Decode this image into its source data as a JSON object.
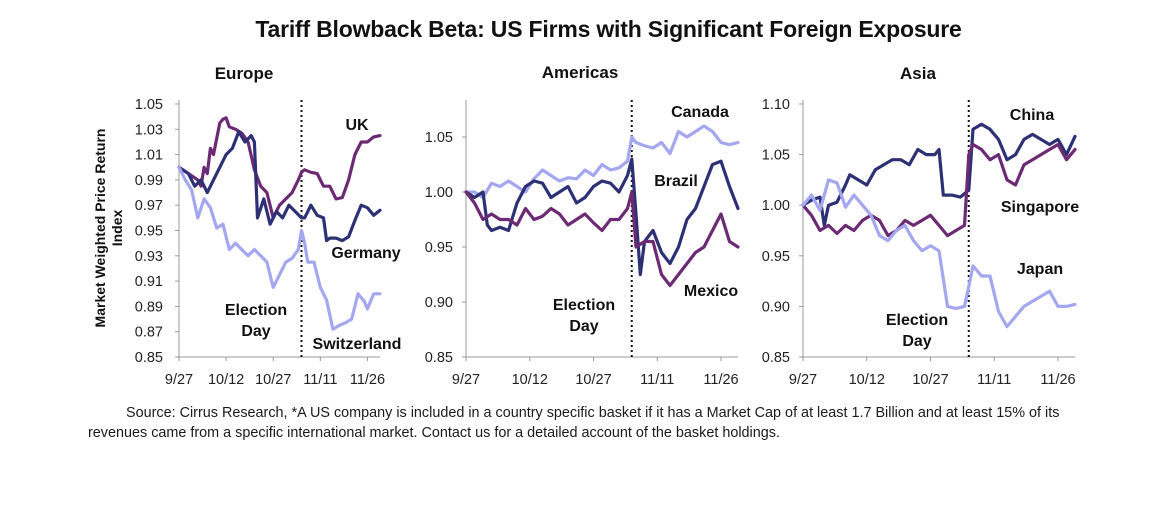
{
  "title": "Tariff Blowback Beta: US Firms with Significant Foreign Exposure",
  "source": "Source: Cirrus Research, *A US company is included in a country specific basket if it has a Market Cap of at least 1.7 Billion and at least 15% of its revenues came from a specific international market. Contact us for a detailed account of the basket holdings.",
  "colors": {
    "dark": "#2e3075",
    "purple": "#6b2a73",
    "light": "#a4a7f0"
  },
  "chart_data": [
    {
      "type": "line",
      "title": "Europe",
      "ylabel": "Market Weighted Price Return Index",
      "ylim": [
        0.85,
        1.05
      ],
      "yticks": [
        "0.85",
        "0.87",
        "0.89",
        "0.91",
        "0.93",
        "0.95",
        "0.97",
        "0.99",
        "1.01",
        "1.03",
        "1.05"
      ],
      "xticks": [
        "9/27",
        "10/12",
        "10/27",
        "11/11",
        "11/26"
      ],
      "x_start": "9/27",
      "x_end": "11/30",
      "annotation": {
        "text": [
          "Election",
          "Day"
        ],
        "x": "11/5"
      },
      "series": [
        {
          "name": "UK",
          "color": "purple",
          "x": [
            "9/27",
            "9/30",
            "10/3",
            "10/4",
            "10/5",
            "10/6",
            "10/7",
            "10/8",
            "10/10",
            "10/11",
            "10/12",
            "10/13",
            "10/15",
            "10/17",
            "10/19",
            "10/21",
            "10/23",
            "10/25",
            "10/27",
            "10/29",
            "10/31",
            "11/2",
            "11/4",
            "11/5",
            "11/6",
            "11/8",
            "11/10",
            "11/12",
            "11/14",
            "11/16",
            "11/18",
            "11/20",
            "11/22",
            "11/24",
            "11/26",
            "11/28",
            "11/30"
          ],
          "y": [
            1.0,
            0.995,
            0.99,
            0.985,
            1.0,
            0.995,
            1.015,
            1.01,
            1.035,
            1.038,
            1.039,
            1.032,
            1.03,
            1.027,
            1.02,
            0.998,
            0.985,
            0.98,
            0.96,
            0.97,
            0.975,
            0.98,
            0.99,
            0.996,
            0.998,
            0.996,
            0.995,
            0.985,
            0.985,
            0.975,
            0.976,
            0.99,
            1.01,
            1.02,
            1.02,
            1.024,
            1.025
          ]
        },
        {
          "name": "Germany",
          "color": "dark",
          "x": [
            "9/27",
            "9/30",
            "10/2",
            "10/4",
            "10/6",
            "10/8",
            "10/10",
            "10/12",
            "10/14",
            "10/16",
            "10/18",
            "10/20",
            "10/21",
            "10/22",
            "10/24",
            "10/26",
            "10/28",
            "10/30",
            "11/1",
            "11/3",
            "11/5",
            "11/6",
            "11/8",
            "11/10",
            "11/12",
            "11/13",
            "11/14",
            "11/16",
            "11/18",
            "11/20",
            "11/22",
            "11/24",
            "11/26",
            "11/28",
            "11/30"
          ],
          "y": [
            1.0,
            0.995,
            0.985,
            0.99,
            0.98,
            0.99,
            1.0,
            1.01,
            1.015,
            1.028,
            1.02,
            1.025,
            1.02,
            0.96,
            0.975,
            0.955,
            0.965,
            0.96,
            0.97,
            0.965,
            0.96,
            0.96,
            0.97,
            0.962,
            0.96,
            0.942,
            0.944,
            0.944,
            0.942,
            0.945,
            0.958,
            0.97,
            0.968,
            0.962,
            0.966
          ]
        },
        {
          "name": "Switzerland",
          "color": "light",
          "x": [
            "9/27",
            "9/29",
            "10/1",
            "10/3",
            "10/5",
            "10/7",
            "10/9",
            "10/11",
            "10/13",
            "10/15",
            "10/17",
            "10/19",
            "10/21",
            "10/23",
            "10/25",
            "10/27",
            "10/29",
            "10/31",
            "11/2",
            "11/4",
            "11/5",
            "11/6",
            "11/7",
            "11/9",
            "11/11",
            "11/13",
            "11/15",
            "11/17",
            "11/19",
            "11/21",
            "11/23",
            "11/25",
            "11/26",
            "11/28",
            "11/30"
          ],
          "y": [
            1.0,
            0.99,
            0.982,
            0.96,
            0.975,
            0.968,
            0.952,
            0.955,
            0.935,
            0.94,
            0.935,
            0.93,
            0.935,
            0.93,
            0.925,
            0.905,
            0.915,
            0.925,
            0.928,
            0.935,
            0.95,
            0.94,
            0.925,
            0.925,
            0.905,
            0.895,
            0.872,
            0.875,
            0.877,
            0.88,
            0.9,
            0.894,
            0.888,
            0.9,
            0.9
          ]
        }
      ],
      "labels": [
        "UK",
        "Germany",
        "Switzerland"
      ]
    },
    {
      "type": "line",
      "title": "Americas",
      "ylim": [
        0.85,
        1.08
      ],
      "yticks": [
        "0.85",
        "0.90",
        "0.95",
        "1.00",
        "1.05"
      ],
      "xticks": [
        "9/27",
        "10/12",
        "10/27",
        "11/11",
        "11/26"
      ],
      "x_start": "9/27",
      "x_end": "11/30",
      "annotation": {
        "text": [
          "Election",
          "Day"
        ],
        "x": "11/5"
      },
      "series": [
        {
          "name": "Canada",
          "color": "light",
          "x": [
            "9/27",
            "9/29",
            "10/1",
            "10/3",
            "10/5",
            "10/7",
            "10/9",
            "10/11",
            "10/13",
            "10/15",
            "10/17",
            "10/19",
            "10/21",
            "10/23",
            "10/25",
            "10/27",
            "10/29",
            "10/31",
            "11/2",
            "11/4",
            "11/5",
            "11/6",
            "11/8",
            "11/10",
            "11/12",
            "11/14",
            "11/16",
            "11/18",
            "11/20",
            "11/22",
            "11/24",
            "11/26",
            "11/28",
            "11/30"
          ],
          "y": [
            1.0,
            1.0,
            0.995,
            1.008,
            1.005,
            1.01,
            1.005,
            1.0,
            1.012,
            1.02,
            1.015,
            1.01,
            1.013,
            1.012,
            1.02,
            1.015,
            1.025,
            1.02,
            1.022,
            1.028,
            1.05,
            1.045,
            1.042,
            1.04,
            1.045,
            1.035,
            1.055,
            1.05,
            1.055,
            1.06,
            1.055,
            1.045,
            1.043,
            1.045
          ]
        },
        {
          "name": "Brazil",
          "color": "dark",
          "x": [
            "9/27",
            "9/29",
            "10/1",
            "10/2",
            "10/3",
            "10/5",
            "10/7",
            "10/9",
            "10/11",
            "10/13",
            "10/15",
            "10/17",
            "10/19",
            "10/21",
            "10/23",
            "10/25",
            "10/27",
            "10/29",
            "10/31",
            "11/2",
            "11/4",
            "11/5",
            "11/6",
            "11/7",
            "11/8",
            "11/10",
            "11/12",
            "11/14",
            "11/16",
            "11/18",
            "11/20",
            "11/22",
            "11/24",
            "11/26",
            "11/28",
            "11/30"
          ],
          "y": [
            1.0,
            0.995,
            1.0,
            0.97,
            0.965,
            0.968,
            0.965,
            0.99,
            1.005,
            1.01,
            1.008,
            0.995,
            1.0,
            1.005,
            0.99,
            0.995,
            1.005,
            1.01,
            1.008,
            1.0,
            1.015,
            1.03,
            0.98,
            0.925,
            0.955,
            0.965,
            0.945,
            0.935,
            0.95,
            0.975,
            0.985,
            1.005,
            1.025,
            1.028,
            1.005,
            0.985
          ]
        },
        {
          "name": "Mexico",
          "color": "purple",
          "x": [
            "9/27",
            "9/29",
            "10/1",
            "10/3",
            "10/5",
            "10/7",
            "10/9",
            "10/11",
            "10/13",
            "10/15",
            "10/17",
            "10/19",
            "10/21",
            "10/23",
            "10/25",
            "10/27",
            "10/29",
            "10/31",
            "11/2",
            "11/4",
            "11/5",
            "11/6",
            "11/8",
            "11/10",
            "11/12",
            "11/14",
            "11/16",
            "11/18",
            "11/20",
            "11/22",
            "11/24",
            "11/26",
            "11/28",
            "11/30"
          ],
          "y": [
            1.0,
            0.99,
            0.975,
            0.98,
            0.975,
            0.975,
            0.97,
            0.985,
            0.975,
            0.978,
            0.985,
            0.98,
            0.97,
            0.975,
            0.98,
            0.972,
            0.965,
            0.975,
            0.975,
            0.985,
            1.0,
            0.95,
            0.955,
            0.955,
            0.925,
            0.915,
            0.925,
            0.935,
            0.945,
            0.95,
            0.965,
            0.98,
            0.955,
            0.95
          ]
        }
      ],
      "labels": [
        "Canada",
        "Brazil",
        "Mexico"
      ]
    },
    {
      "type": "line",
      "title": "Asia",
      "ylim": [
        0.85,
        1.1
      ],
      "yticks": [
        "0.85",
        "0.90",
        "0.95",
        "1.00",
        "1.05",
        "1.10"
      ],
      "xticks": [
        "9/27",
        "10/12",
        "10/27",
        "11/11",
        "11/26"
      ],
      "x_start": "9/27",
      "x_end": "11/30",
      "annotation": {
        "text": [
          "Election",
          "Day"
        ],
        "x": "11/5"
      },
      "series": [
        {
          "name": "China",
          "color": "dark",
          "x": [
            "9/27",
            "9/29",
            "10/1",
            "10/2",
            "10/3",
            "10/5",
            "10/7",
            "10/8",
            "10/10",
            "10/12",
            "10/14",
            "10/16",
            "10/18",
            "10/20",
            "10/22",
            "10/24",
            "10/26",
            "10/28",
            "10/29",
            "10/30",
            "11/1",
            "11/3",
            "11/5",
            "11/6",
            "11/8",
            "11/10",
            "11/12",
            "11/14",
            "11/16",
            "11/18",
            "11/20",
            "11/22",
            "11/24",
            "11/26",
            "11/28",
            "11/30"
          ],
          "y": [
            1.0,
            1.005,
            1.008,
            0.98,
            1.0,
            1.003,
            1.02,
            1.03,
            1.025,
            1.02,
            1.035,
            1.04,
            1.045,
            1.045,
            1.04,
            1.055,
            1.05,
            1.05,
            1.055,
            1.01,
            1.01,
            1.008,
            1.015,
            1.075,
            1.08,
            1.075,
            1.065,
            1.045,
            1.05,
            1.065,
            1.07,
            1.065,
            1.06,
            1.065,
            1.05,
            1.068
          ]
        },
        {
          "name": "Singapore",
          "color": "purple",
          "x": [
            "9/27",
            "9/29",
            "10/1",
            "10/3",
            "10/5",
            "10/7",
            "10/9",
            "10/11",
            "10/13",
            "10/15",
            "10/17",
            "10/19",
            "10/21",
            "10/23",
            "10/25",
            "10/27",
            "10/29",
            "10/31",
            "11/2",
            "11/4",
            "11/5",
            "11/6",
            "11/8",
            "11/10",
            "11/12",
            "11/14",
            "11/16",
            "11/18",
            "11/20",
            "11/22",
            "11/24",
            "11/26",
            "11/28",
            "11/30"
          ],
          "y": [
            1.0,
            0.99,
            0.975,
            0.98,
            0.972,
            0.98,
            0.975,
            0.985,
            0.99,
            0.985,
            0.97,
            0.975,
            0.985,
            0.98,
            0.985,
            0.99,
            0.98,
            0.97,
            0.975,
            0.98,
            1.05,
            1.06,
            1.055,
            1.045,
            1.05,
            1.025,
            1.02,
            1.04,
            1.045,
            1.05,
            1.055,
            1.06,
            1.045,
            1.055
          ]
        },
        {
          "name": "Japan",
          "color": "light",
          "x": [
            "9/27",
            "9/29",
            "10/1",
            "10/3",
            "10/5",
            "10/7",
            "10/9",
            "10/11",
            "10/13",
            "10/15",
            "10/17",
            "10/19",
            "10/21",
            "10/23",
            "10/25",
            "10/27",
            "10/29",
            "10/31",
            "11/2",
            "11/4",
            "11/5",
            "11/6",
            "11/8",
            "11/10",
            "11/12",
            "11/14",
            "11/16",
            "11/18",
            "11/20",
            "11/22",
            "11/24",
            "11/26",
            "11/28",
            "11/30"
          ],
          "y": [
            1.0,
            1.01,
            0.995,
            1.025,
            1.022,
            0.998,
            1.01,
            1.0,
            0.99,
            0.97,
            0.965,
            0.975,
            0.98,
            0.965,
            0.955,
            0.96,
            0.955,
            0.9,
            0.898,
            0.9,
            0.92,
            0.94,
            0.93,
            0.93,
            0.895,
            0.88,
            0.89,
            0.9,
            0.905,
            0.91,
            0.915,
            0.9,
            0.9,
            0.902
          ]
        }
      ],
      "labels": [
        "China",
        "Singapore",
        "Japan"
      ]
    }
  ]
}
